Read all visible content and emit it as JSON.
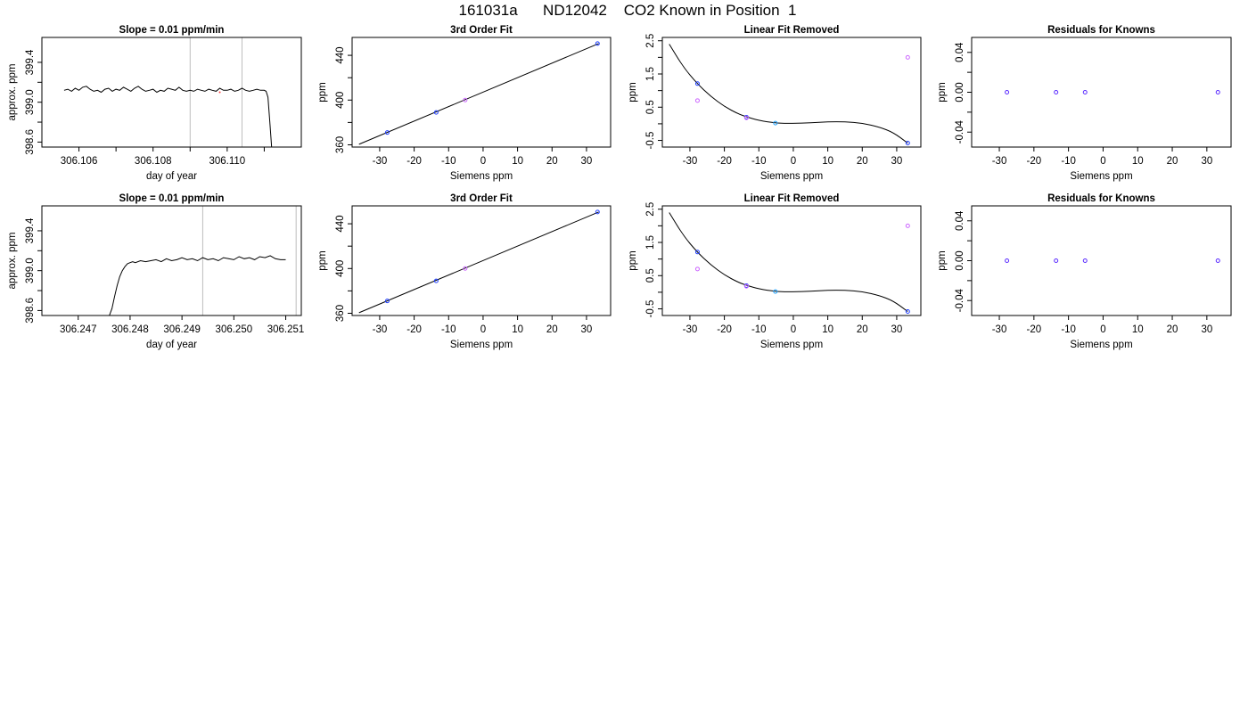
{
  "figure": {
    "title": "161031a      ND12042    CO2 Known in Position  1"
  },
  "chart_data": [
    {
      "type": "line",
      "title": "Slope =  0.01  ppm/min",
      "xlabel": "day of year",
      "ylabel": "approx. ppm",
      "xlim": [
        306.105,
        306.112
      ],
      "ylim": [
        398.55,
        399.65
      ],
      "xticks": [
        306.106,
        306.108,
        306.11
      ],
      "xtick_labels": [
        "306.106",
        "306.108",
        "306.110"
      ],
      "xminor": [
        306.107,
        306.109,
        306.111
      ],
      "yticks": [
        398.6,
        399.0,
        399.4
      ],
      "ytick_labels": [
        "398.6",
        "399.0",
        "399.4"
      ],
      "yminor": [
        398.8,
        399.2
      ],
      "vlines": [
        306.109,
        306.1104
      ],
      "series": [
        {
          "x": [
            306.1056,
            306.1057,
            306.1058,
            306.1059,
            306.106,
            306.1061,
            306.1062,
            306.1063,
            306.1064,
            306.1065,
            306.1066,
            306.1067,
            306.1068,
            306.1069,
            306.107,
            306.1071,
            306.1072,
            306.1073,
            306.1074,
            306.1075,
            306.1076,
            306.1077,
            306.1078,
            306.1079,
            306.108,
            306.1081,
            306.1082,
            306.1083,
            306.1084,
            306.1085,
            306.1086,
            306.1087,
            306.1088,
            306.1089,
            306.109,
            306.1091,
            306.1092,
            306.1093,
            306.1094,
            306.1095,
            306.1096,
            306.1097,
            306.1098,
            306.1099,
            306.11,
            306.1101,
            306.1102,
            306.1103,
            306.1104,
            306.1105,
            306.1106,
            306.1107,
            306.1108,
            306.1109,
            306.111,
            306.11105,
            306.1111,
            306.11115,
            306.1112
          ],
          "y": [
            399.12,
            399.13,
            399.11,
            399.14,
            399.12,
            399.15,
            399.16,
            399.13,
            399.11,
            399.12,
            399.1,
            399.13,
            399.14,
            399.11,
            399.13,
            399.12,
            399.15,
            399.13,
            399.11,
            399.14,
            399.16,
            399.13,
            399.11,
            399.12,
            399.13,
            399.1,
            399.12,
            399.11,
            399.14,
            399.13,
            399.12,
            399.15,
            399.12,
            399.11,
            399.12,
            399.11,
            399.13,
            399.12,
            399.11,
            399.13,
            399.12,
            399.11,
            399.14,
            399.12,
            399.12,
            399.13,
            399.11,
            399.12,
            399.14,
            399.12,
            399.11,
            399.12,
            399.13,
            399.12,
            399.12,
            399.11,
            399.05,
            398.8,
            398.55
          ]
        }
      ],
      "red_points": [
        {
          "x": 306.1098,
          "y": 399.1
        }
      ]
    },
    {
      "type": "scatter",
      "title": "3rd Order Fit",
      "xlabel": "Siemens ppm",
      "ylabel": "ppm",
      "xlim": [
        -38,
        37
      ],
      "ylim": [
        358,
        456
      ],
      "xticks": [
        -30,
        -20,
        -10,
        0,
        10,
        20,
        30
      ],
      "xtick_labels": [
        "-30",
        "-20",
        "-10",
        "0",
        "10",
        "20",
        "30"
      ],
      "yticks": [
        360,
        400,
        440
      ],
      "ytick_labels": [
        "360",
        "400",
        "440"
      ],
      "yminor": [
        380,
        420
      ],
      "fit_line": {
        "x": [
          -36,
          33.5
        ],
        "y": [
          360.5,
          450.5
        ]
      },
      "points": [
        {
          "x": -27.8,
          "y": 371.0,
          "color": "#1f3fff"
        },
        {
          "x": -13.6,
          "y": 389.0,
          "color": "#1f3fff"
        },
        {
          "x": -5.2,
          "y": 400.0,
          "color": "#cc66ff"
        },
        {
          "x": 33.2,
          "y": 450.5,
          "color": "#1f3fff"
        }
      ]
    },
    {
      "type": "scatter",
      "title": "Linear Fit Removed",
      "xlabel": "Siemens ppm",
      "ylabel": "ppm",
      "xlim": [
        -38,
        37
      ],
      "ylim": [
        -0.7,
        2.6
      ],
      "xticks": [
        -30,
        -20,
        -10,
        0,
        10,
        20,
        30
      ],
      "xtick_labels": [
        "-30",
        "-20",
        "-10",
        "0",
        "10",
        "20",
        "30"
      ],
      "yticks": [
        -0.5,
        0.5,
        1.5,
        2.5
      ],
      "ytick_labels": [
        "-0.5",
        "0.5",
        "1.5",
        "2.5"
      ],
      "yminor": [
        0,
        1,
        2
      ],
      "fit_curve": {
        "x": [
          -36,
          -32,
          -28,
          -24,
          -20,
          -16,
          -13.6,
          -10,
          -5.2,
          0,
          5,
          10,
          15,
          20,
          25,
          29,
          33.2
        ],
        "y": [
          2.4,
          1.72,
          1.22,
          0.83,
          0.52,
          0.3,
          0.21,
          0.1,
          0.02,
          0.01,
          0.03,
          0.06,
          0.06,
          0.02,
          -0.1,
          -0.26,
          -0.58
        ]
      },
      "points": [
        {
          "x": -27.8,
          "y": 1.21,
          "color": "#1f3fff"
        },
        {
          "x": -27.8,
          "y": 0.7,
          "color": "#cc66ff"
        },
        {
          "x": -13.6,
          "y": 0.2,
          "color": "#1f3fff"
        },
        {
          "x": -13.6,
          "y": 0.18,
          "color": "#cc66ff"
        },
        {
          "x": -5.2,
          "y": 0.02,
          "color": "#1fa3ff"
        },
        {
          "x": 33.2,
          "y": 2.0,
          "color": "#cc66ff"
        },
        {
          "x": 33.2,
          "y": -0.58,
          "color": "#1f3fff"
        }
      ]
    },
    {
      "type": "scatter",
      "title": "Residuals for Knowns",
      "xlabel": "Siemens ppm",
      "ylabel": "ppm",
      "xlim": [
        -38,
        37
      ],
      "ylim": [
        -0.055,
        0.055
      ],
      "xticks": [
        -30,
        -20,
        -10,
        0,
        10,
        20,
        30
      ],
      "xtick_labels": [
        "-30",
        "-20",
        "-10",
        "0",
        "10",
        "20",
        "30"
      ],
      "yticks": [
        -0.04,
        0.0,
        0.04
      ],
      "ytick_labels": [
        "-0.04",
        "0.00",
        "0.04"
      ],
      "yminor": [
        -0.02,
        0.02
      ],
      "points": [
        {
          "x": -27.8,
          "y": 0.0,
          "color": "#5a2bff"
        },
        {
          "x": -13.6,
          "y": 0.0,
          "color": "#5a2bff"
        },
        {
          "x": -5.2,
          "y": 0.0,
          "color": "#5a2bff"
        },
        {
          "x": 33.2,
          "y": 0.0,
          "color": "#5a2bff"
        }
      ]
    },
    {
      "type": "line",
      "title": "Slope =  0.01  ppm/min",
      "xlabel": "day of year",
      "ylabel": "approx. ppm",
      "xlim": [
        306.2463,
        306.2513
      ],
      "ylim": [
        398.55,
        399.65
      ],
      "xticks": [
        306.247,
        306.248,
        306.249,
        306.25,
        306.251
      ],
      "xtick_labels": [
        "306.247",
        "306.248",
        "306.249",
        "306.250",
        "306.251"
      ],
      "yticks": [
        398.6,
        399.0,
        399.4
      ],
      "ytick_labels": [
        "398.6",
        "399.0",
        "399.4"
      ],
      "yminor": [
        398.8,
        399.2
      ],
      "vlines": [
        306.2494,
        306.2512
      ],
      "series": [
        {
          "x": [
            306.2476,
            306.24765,
            306.2477,
            306.24775,
            306.2478,
            306.24785,
            306.2479,
            306.24795,
            306.248,
            306.24805,
            306.2481,
            306.2482,
            306.2483,
            306.2484,
            306.2485,
            306.2486,
            306.2487,
            306.2488,
            306.2489,
            306.249,
            306.2491,
            306.2492,
            306.2493,
            306.2494,
            306.2495,
            306.2496,
            306.2497,
            306.2498,
            306.2499,
            306.25,
            306.2501,
            306.2502,
            306.2503,
            306.2504,
            306.2505,
            306.2506,
            306.2507,
            306.2508,
            306.2509,
            306.251
          ],
          "y": [
            398.55,
            398.62,
            398.74,
            398.85,
            398.94,
            399.0,
            399.04,
            399.07,
            399.08,
            399.09,
            399.08,
            399.1,
            399.09,
            399.1,
            399.11,
            399.09,
            399.12,
            399.1,
            399.11,
            399.13,
            399.11,
            399.12,
            399.1,
            399.13,
            399.11,
            399.12,
            399.1,
            399.13,
            399.12,
            399.11,
            399.14,
            399.12,
            399.13,
            399.11,
            399.14,
            399.13,
            399.15,
            399.12,
            399.11,
            399.11
          ]
        }
      ],
      "red_points": []
    },
    {
      "type": "scatter",
      "title": "3rd Order Fit",
      "xlabel": "Siemens ppm",
      "ylabel": "ppm",
      "xlim": [
        -38,
        37
      ],
      "ylim": [
        358,
        456
      ],
      "xticks": [
        -30,
        -20,
        -10,
        0,
        10,
        20,
        30
      ],
      "xtick_labels": [
        "-30",
        "-20",
        "-10",
        "0",
        "10",
        "20",
        "30"
      ],
      "yticks": [
        360,
        400,
        440
      ],
      "ytick_labels": [
        "360",
        "400",
        "440"
      ],
      "yminor": [
        380,
        420
      ],
      "fit_line": {
        "x": [
          -36,
          33.5
        ],
        "y": [
          360.5,
          450.5
        ]
      },
      "points": [
        {
          "x": -27.8,
          "y": 371.0,
          "color": "#1f3fff"
        },
        {
          "x": -13.6,
          "y": 389.0,
          "color": "#1f3fff"
        },
        {
          "x": -5.2,
          "y": 400.0,
          "color": "#cc66ff"
        },
        {
          "x": 33.2,
          "y": 450.5,
          "color": "#1f3fff"
        }
      ]
    },
    {
      "type": "scatter",
      "title": "Linear Fit Removed",
      "xlabel": "Siemens ppm",
      "ylabel": "ppm",
      "xlim": [
        -38,
        37
      ],
      "ylim": [
        -0.7,
        2.6
      ],
      "xticks": [
        -30,
        -20,
        -10,
        0,
        10,
        20,
        30
      ],
      "xtick_labels": [
        "-30",
        "-20",
        "-10",
        "0",
        "10",
        "20",
        "30"
      ],
      "yticks": [
        -0.5,
        0.5,
        1.5,
        2.5
      ],
      "ytick_labels": [
        "-0.5",
        "0.5",
        "1.5",
        "2.5"
      ],
      "yminor": [
        0,
        1,
        2
      ],
      "fit_curve": {
        "x": [
          -36,
          -32,
          -28,
          -24,
          -20,
          -16,
          -13.6,
          -10,
          -5.2,
          0,
          5,
          10,
          15,
          20,
          25,
          29,
          33.2
        ],
        "y": [
          2.4,
          1.72,
          1.22,
          0.83,
          0.52,
          0.3,
          0.21,
          0.1,
          0.02,
          0.01,
          0.03,
          0.06,
          0.06,
          0.02,
          -0.1,
          -0.26,
          -0.58
        ]
      },
      "points": [
        {
          "x": -27.8,
          "y": 1.21,
          "color": "#1f3fff"
        },
        {
          "x": -27.8,
          "y": 0.7,
          "color": "#cc66ff"
        },
        {
          "x": -13.6,
          "y": 0.2,
          "color": "#1f3fff"
        },
        {
          "x": -13.6,
          "y": 0.18,
          "color": "#cc66ff"
        },
        {
          "x": -5.2,
          "y": 0.02,
          "color": "#1fa3ff"
        },
        {
          "x": 33.2,
          "y": 2.0,
          "color": "#cc66ff"
        },
        {
          "x": 33.2,
          "y": -0.58,
          "color": "#1f3fff"
        }
      ]
    },
    {
      "type": "scatter",
      "title": "Residuals for Knowns",
      "xlabel": "Siemens ppm",
      "ylabel": "ppm",
      "xlim": [
        -38,
        37
      ],
      "ylim": [
        -0.055,
        0.055
      ],
      "xticks": [
        -30,
        -20,
        -10,
        0,
        10,
        20,
        30
      ],
      "xtick_labels": [
        "-30",
        "-20",
        "-10",
        "0",
        "10",
        "20",
        "30"
      ],
      "yticks": [
        -0.04,
        0.0,
        0.04
      ],
      "ytick_labels": [
        "-0.04",
        "0.00",
        "0.04"
      ],
      "yminor": [
        -0.02,
        0.02
      ],
      "points": [
        {
          "x": -27.8,
          "y": 0.0,
          "color": "#5a2bff"
        },
        {
          "x": -13.6,
          "y": 0.0,
          "color": "#5a2bff"
        },
        {
          "x": -5.2,
          "y": 0.0,
          "color": "#5a2bff"
        },
        {
          "x": 33.2,
          "y": 0.0,
          "color": "#5a2bff"
        }
      ]
    }
  ]
}
